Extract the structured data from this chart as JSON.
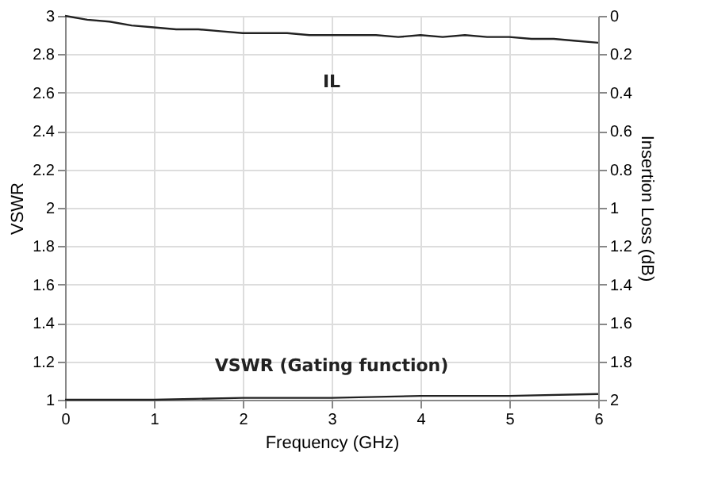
{
  "chart_data": {
    "type": "line",
    "xlabel": "Frequency (GHz)",
    "ylabel": "VSWR",
    "y2label": "Insertion Loss (dB)",
    "xlim": [
      0,
      6
    ],
    "xticks": [
      0,
      1,
      2,
      3,
      4,
      5,
      6
    ],
    "ylim": [
      1,
      3
    ],
    "yticks": [
      1,
      1.2,
      1.4,
      1.6,
      1.8,
      2,
      2.2,
      2.4,
      2.6,
      2.8,
      3
    ],
    "y2lim": [
      2,
      0
    ],
    "y2ticks": [
      0,
      0.2,
      0.4,
      0.6,
      0.8,
      1,
      1.2,
      1.4,
      1.6,
      1.8,
      2
    ],
    "grid": true,
    "legend": false,
    "marker": "none",
    "line_style": "solid",
    "series": [
      {
        "name": "IL",
        "color": "#222222",
        "axis": "y2",
        "x": [
          0,
          0.25,
          0.5,
          0.75,
          1,
          1.25,
          1.5,
          1.75,
          2,
          2.25,
          2.5,
          2.75,
          3,
          3.25,
          3.5,
          3.75,
          4,
          4.25,
          4.5,
          4.75,
          5,
          5.25,
          5.5,
          5.75,
          6
        ],
        "values": [
          0.0,
          0.02,
          0.03,
          0.05,
          0.06,
          0.07,
          0.07,
          0.08,
          0.09,
          0.09,
          0.09,
          0.1,
          0.1,
          0.1,
          0.1,
          0.11,
          0.1,
          0.11,
          0.1,
          0.11,
          0.11,
          0.12,
          0.12,
          0.13,
          0.14
        ]
      },
      {
        "name": "VSWR (Gating function)",
        "color": "#222222",
        "x": [
          0,
          1,
          2,
          3,
          4,
          5,
          6
        ],
        "values": [
          1.0,
          1.0,
          1.01,
          1.01,
          1.02,
          1.02,
          1.03
        ]
      }
    ]
  }
}
